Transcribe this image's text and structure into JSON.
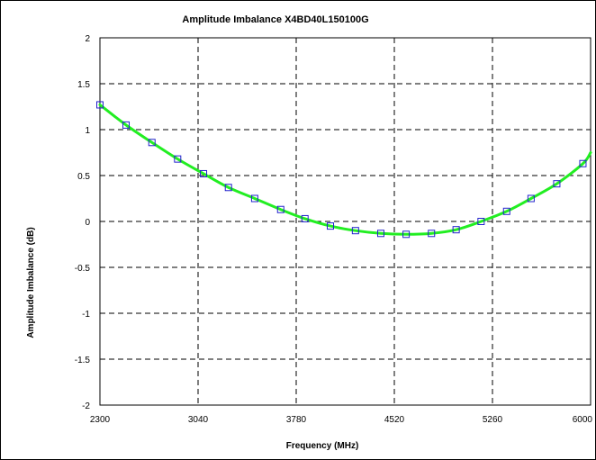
{
  "chart_data": {
    "type": "line",
    "title": "Amplitude Imbalance  X4BD40L150100G",
    "xlabel": "Frequency (MHz)",
    "ylabel": "Amplitude Imbalance (dB)",
    "xlim": [
      2300,
      6000
    ],
    "ylim": [
      -2,
      2
    ],
    "xticks": [
      2300,
      3040,
      3780,
      4520,
      5260,
      6000
    ],
    "xtick_labels": [
      "2300",
      "3040",
      "3780",
      "4520",
      "5260",
      "6000"
    ],
    "yticks": [
      2,
      1.5,
      1,
      0.5,
      0,
      -0.5,
      -1,
      -1.5,
      -2
    ],
    "ytick_labels": [
      "2",
      "1.5",
      "1",
      "0.5",
      "0",
      "-0.5",
      "-1",
      "-1.5",
      "-2"
    ],
    "grid": true,
    "legend": false,
    "colors": {
      "line": "#22ee22",
      "marker": "#2222cc",
      "grid": "#000000"
    },
    "series": [
      {
        "x": [
          2300,
          2497,
          2692,
          2886,
          3081,
          3269,
          3467,
          3663,
          3846,
          4038,
          4227,
          4418,
          4609,
          4800,
          4986,
          5174,
          5367,
          5551,
          5745,
          5942,
          6000
        ],
        "y": [
          1.27,
          1.05,
          0.86,
          0.68,
          0.52,
          0.37,
          0.25,
          0.13,
          0.03,
          -0.05,
          -0.1,
          -0.13,
          -0.14,
          -0.13,
          -0.09,
          0.0,
          0.11,
          0.25,
          0.41,
          0.63,
          0.75
        ],
        "marker_x": [
          2300,
          2497,
          2692,
          2886,
          3081,
          3269,
          3467,
          3663,
          3846,
          4038,
          4227,
          4418,
          4609,
          4800,
          4986,
          5174,
          5367,
          5551,
          5745,
          5942
        ],
        "marker_y": [
          1.27,
          1.05,
          0.86,
          0.68,
          0.52,
          0.37,
          0.25,
          0.13,
          0.03,
          -0.05,
          -0.1,
          -0.13,
          -0.14,
          -0.13,
          -0.09,
          0.0,
          0.11,
          0.25,
          0.41,
          0.63
        ]
      }
    ]
  }
}
